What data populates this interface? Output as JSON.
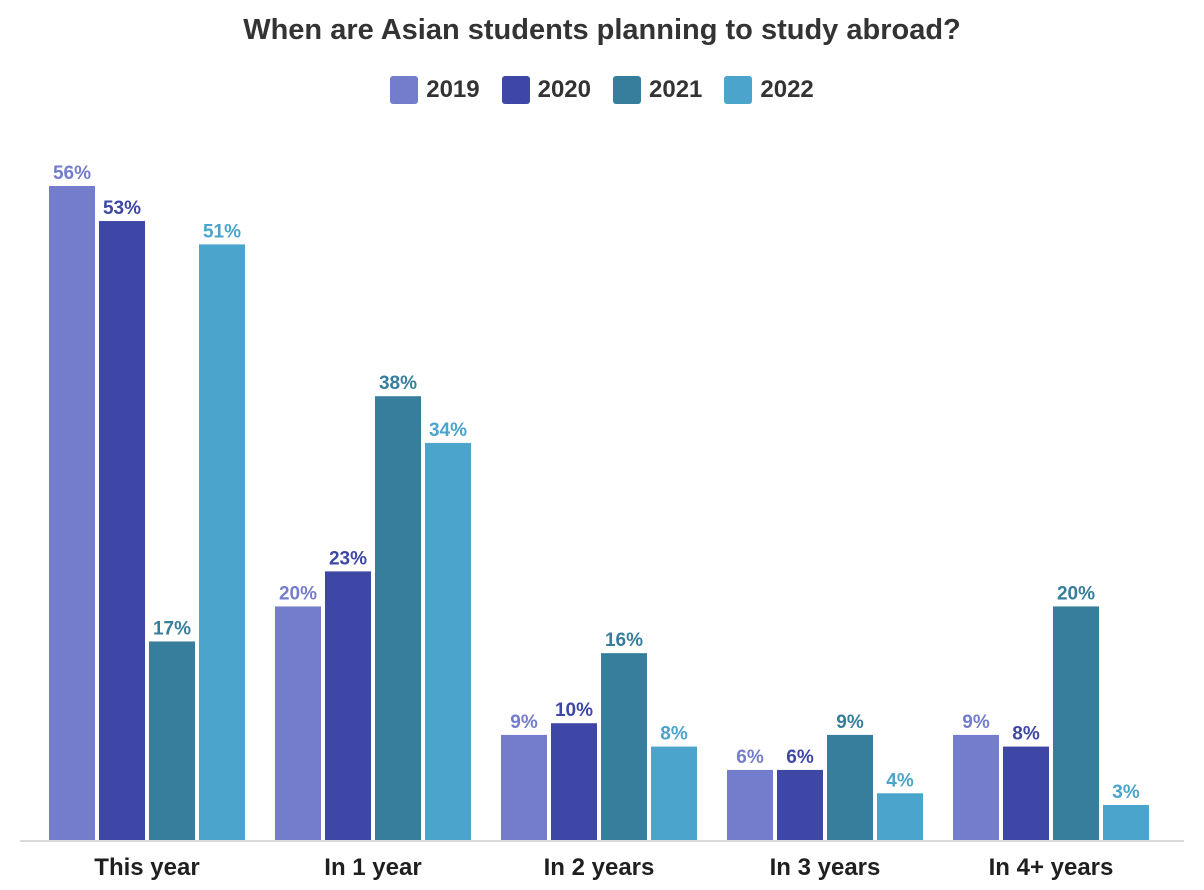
{
  "chart_data": {
    "type": "bar",
    "title": "When are Asian students planning to study abroad?",
    "categories": [
      "This year",
      "In 1 year",
      "In 2 years",
      "In 3 years",
      "In 4+ years"
    ],
    "series": [
      {
        "name": "2019",
        "color": "#737dcc",
        "values": [
          56,
          20,
          9,
          6,
          9
        ],
        "labels": [
          "56%",
          "20%",
          "9%",
          "6%",
          "9%"
        ]
      },
      {
        "name": "2020",
        "color": "#3e47a6",
        "values": [
          53,
          23,
          10,
          6,
          8
        ],
        "labels": [
          "53%",
          "23%",
          "10%",
          "6%",
          "8%"
        ]
      },
      {
        "name": "2021",
        "color": "#367e9b",
        "values": [
          17,
          38,
          16,
          9,
          20
        ],
        "labels": [
          "17%",
          "38%",
          "16%",
          "9%",
          "20%"
        ]
      },
      {
        "name": "2022",
        "color": "#4ba4cc",
        "values": [
          51,
          34,
          8,
          4,
          3
        ],
        "labels": [
          "51%",
          "34%",
          "8%",
          "4%",
          "3%"
        ]
      }
    ],
    "xlabel": "",
    "ylabel": "",
    "ylim": [
      0,
      56
    ],
    "grid": false,
    "legend_position": "top-center"
  }
}
